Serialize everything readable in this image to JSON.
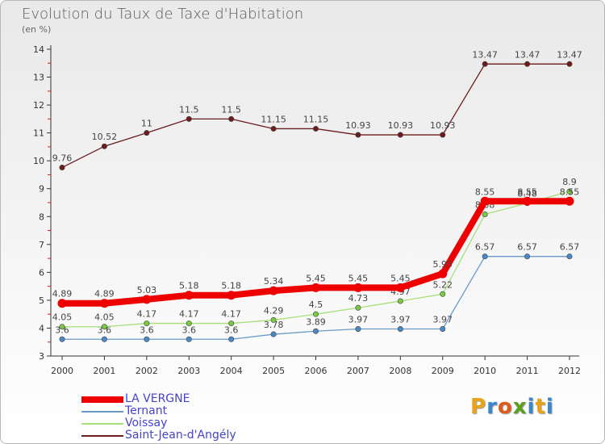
{
  "header": {
    "title": "Evolution du Taux de Taxe d'Habitation",
    "unit": "(en %)"
  },
  "brand": {
    "letters": [
      "P",
      "r",
      "o",
      "x",
      "i",
      "t",
      "i"
    ],
    "colors": [
      "#e8a317",
      "#3b87c8",
      "#e05a1c",
      "#5aa020",
      "#3b87c8",
      "#e8a317",
      "#3b87c8"
    ]
  },
  "chart_data": {
    "type": "line",
    "title": "Evolution du Taux de Taxe d'Habitation",
    "xlabel": "",
    "ylabel": "(en %)",
    "ylim": [
      3,
      14
    ],
    "yticks": [
      "3",
      "4",
      "5",
      "6",
      "7",
      "8",
      "9",
      "10",
      "11",
      "12",
      "13",
      "14"
    ],
    "categories": [
      "2000",
      "2001",
      "2002",
      "2003",
      "2004",
      "2005",
      "2006",
      "2007",
      "2008",
      "2009",
      "2010",
      "2011",
      "2012"
    ],
    "legend_position": "bottom-left",
    "grid": false,
    "series": [
      {
        "name": "Saint-Jean-d'Angély",
        "color": "#6b1c1c",
        "marker": "#6b1c1c",
        "values": [
          9.76,
          10.52,
          11,
          11.5,
          11.5,
          11.15,
          11.15,
          10.93,
          10.93,
          10.93,
          13.47,
          13.47,
          13.47
        ],
        "labels": [
          "9.76",
          "10.52",
          "11",
          "11.5",
          "11.5",
          "11.15",
          "11.15",
          "10.93",
          "10.93",
          "10.93",
          "13.47",
          "13.47",
          "13.47"
        ]
      },
      {
        "name": "Ternant",
        "color": "#6a9ac8",
        "marker": "#4a88c8",
        "values": [
          3.6,
          3.6,
          3.6,
          3.6,
          3.6,
          3.78,
          3.89,
          3.97,
          3.97,
          3.97,
          6.57,
          6.57,
          6.57
        ],
        "labels": [
          "3.6",
          "3.6",
          "3.6",
          "3.6",
          "3.6",
          "3.78",
          "3.89",
          "3.97",
          "3.97",
          "3.97",
          "6.57",
          "6.57",
          "6.57"
        ]
      },
      {
        "name": "Voissay",
        "color": "#a6e07a",
        "marker": "#7ac943",
        "values": [
          4.05,
          4.05,
          4.17,
          4.17,
          4.17,
          4.29,
          4.5,
          4.73,
          4.97,
          5.22,
          8.08,
          8.48,
          8.9
        ],
        "labels": [
          "4.05",
          "4.05",
          "4.17",
          "4.17",
          "4.17",
          "4.29",
          "4.5",
          "4.73",
          "4.97",
          "5.22",
          "8.08",
          "8.48",
          "8.9"
        ]
      },
      {
        "name": "LA VERGNE",
        "color": "#ee0000",
        "marker": "#ee0000",
        "values": [
          4.89,
          4.89,
          5.03,
          5.18,
          5.18,
          5.34,
          5.45,
          5.45,
          5.45,
          5.95,
          8.55,
          8.55,
          8.55
        ],
        "labels": [
          "4.89",
          "4.89",
          "5.03",
          "5.18",
          "5.18",
          "5.34",
          "5.45",
          "5.45",
          "5.45",
          "5.95",
          "8.55",
          "8.55",
          "8.55"
        ]
      }
    ],
    "legend": [
      {
        "name": "LA VERGNE",
        "color": "#ee0000",
        "thickness": "thick"
      },
      {
        "name": "Ternant",
        "color": "#6a9ac8",
        "thickness": "thin"
      },
      {
        "name": "Voissay",
        "color": "#a6e07a",
        "thickness": "thin"
      },
      {
        "name": "Saint-Jean-d'Angély",
        "color": "#6b1c1c",
        "thickness": "thin"
      }
    ]
  }
}
